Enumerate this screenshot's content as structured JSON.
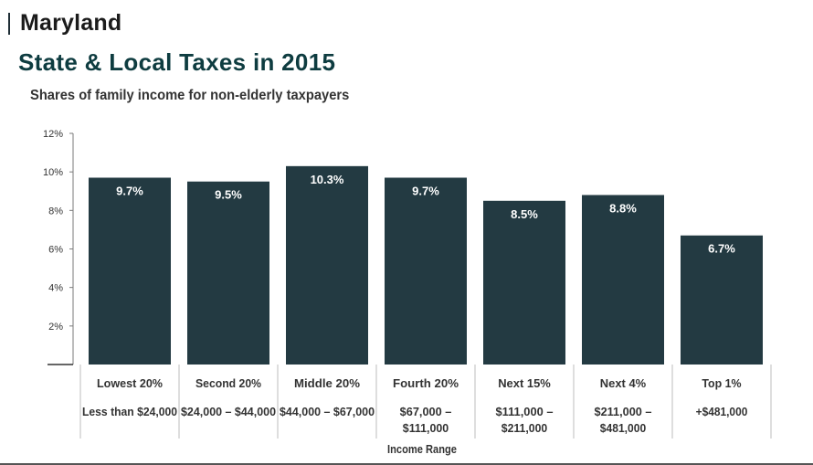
{
  "header": {
    "region": "Maryland",
    "title": "State & Local Taxes in 2015"
  },
  "chart_data": {
    "type": "bar",
    "title": "Shares of family income for non-elderly taxpayers",
    "xlabel": "Income Range",
    "ylabel": "",
    "ylim": [
      0,
      12
    ],
    "yticks": [
      "",
      "2%",
      "4%",
      "6%",
      "8%",
      "10%",
      "12%"
    ],
    "grid": false,
    "bar_color": "#233a42",
    "categories": [
      "Lowest 20%",
      "Second 20%",
      "Middle 20%",
      "Fourth 20%",
      "Next 15%",
      "Next 4%",
      "Top 1%"
    ],
    "ranges": [
      [
        "Less than $24,000"
      ],
      [
        "$24,000 – $44,000"
      ],
      [
        "$44,000 – $67,000"
      ],
      [
        "$67,000 –",
        "$111,000"
      ],
      [
        "$111,000 –",
        "$211,000"
      ],
      [
        "$211,000 –",
        "$481,000"
      ],
      [
        "+$481,000"
      ]
    ],
    "values": [
      9.7,
      9.5,
      10.3,
      9.7,
      8.5,
      8.8,
      6.7
    ],
    "value_labels": [
      "9.7%",
      "9.5%",
      "10.3%",
      "9.7%",
      "8.5%",
      "8.8%",
      "6.7%"
    ]
  }
}
